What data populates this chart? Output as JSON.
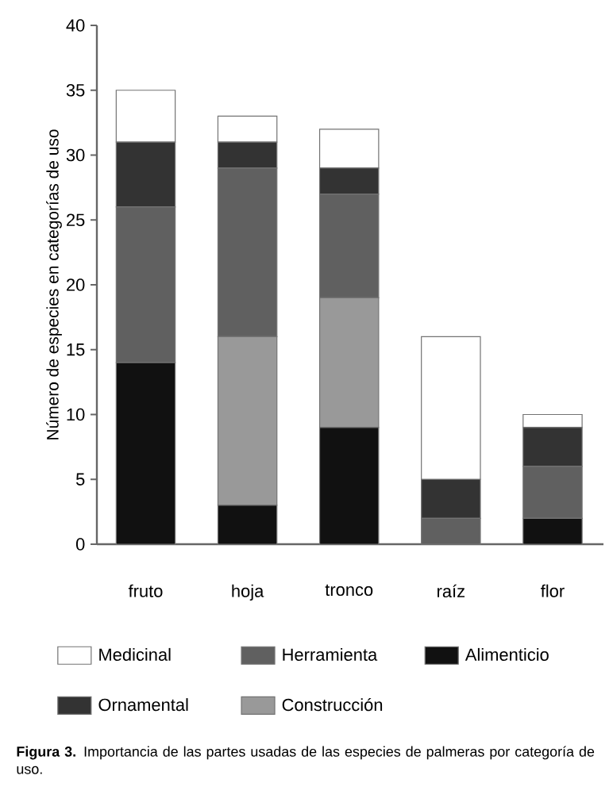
{
  "chart_data": {
    "type": "bar",
    "stacked": true,
    "categories": [
      "fruto",
      "hoja",
      "tronco",
      "raíz",
      "flor"
    ],
    "ylabel": "Número de especies en categorías de uso",
    "ylim": [
      0,
      40
    ],
    "yticks": [
      0,
      5,
      10,
      15,
      20,
      25,
      30,
      35,
      40
    ],
    "legend": "bottom",
    "grid": false,
    "series": [
      {
        "name": "Alimenticio",
        "color": "#111111",
        "values": [
          14,
          3,
          9,
          0,
          2
        ]
      },
      {
        "name": "Construcción",
        "color": "#999999",
        "values": [
          0,
          13,
          10,
          0,
          0
        ]
      },
      {
        "name": "Herramienta",
        "color": "#606060",
        "values": [
          12,
          13,
          8,
          2,
          4
        ]
      },
      {
        "name": "Ornamental",
        "color": "#333333",
        "values": [
          5,
          2,
          2,
          3,
          3
        ]
      },
      {
        "name": "Medicinal",
        "color": "#ffffff",
        "values": [
          4,
          2,
          3,
          11,
          1
        ]
      }
    ],
    "annotations": [
      "**Figura 3.** Importancia de las partes usadas de las especies de palmeras por categoría de uso."
    ]
  }
}
